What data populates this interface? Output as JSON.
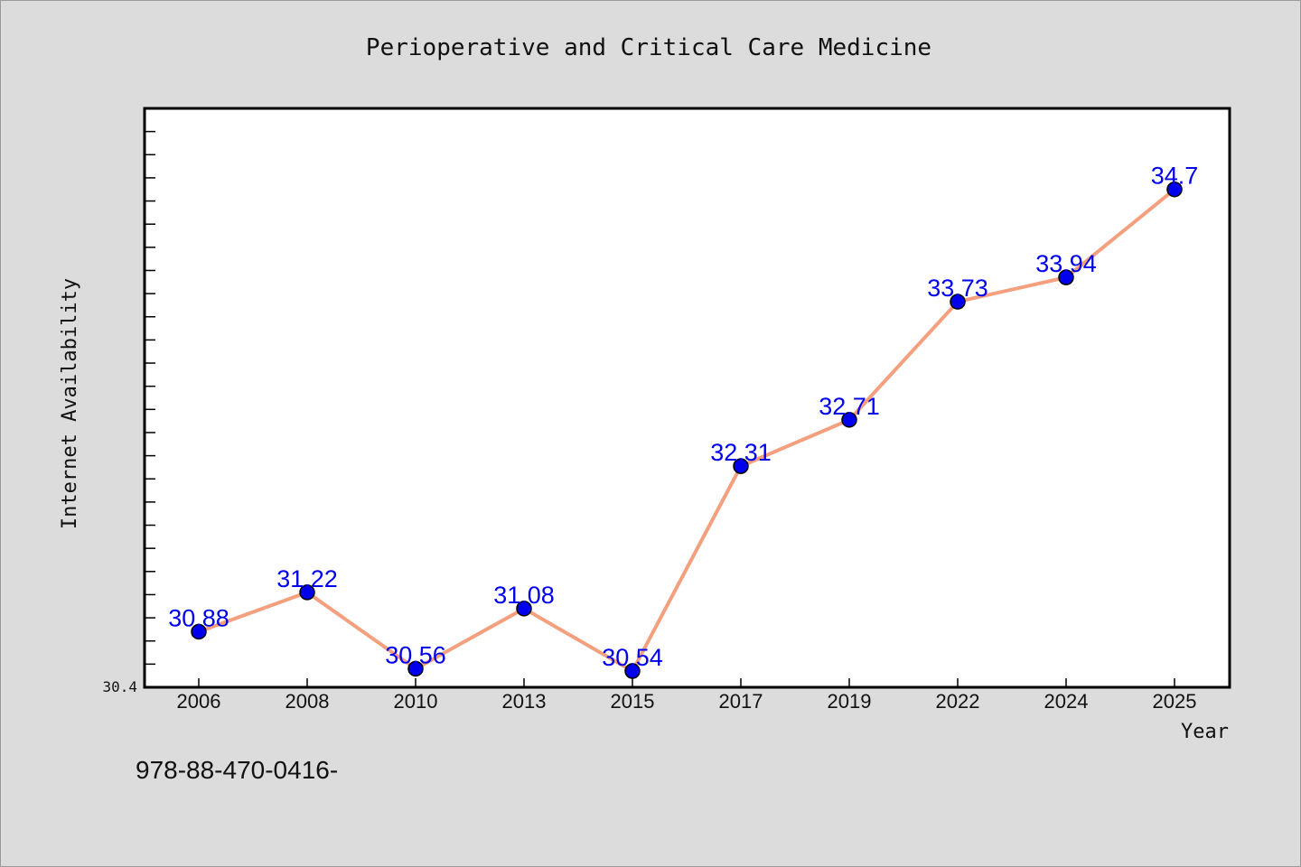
{
  "chart_data": {
    "type": "line",
    "title": "Perioperative and Critical Care Medicine",
    "xlabel": "Year",
    "ylabel": "Internet Availability",
    "categories": [
      "2006",
      "2008",
      "2010",
      "2013",
      "2015",
      "2017",
      "2019",
      "2022",
      "2024",
      "2025"
    ],
    "series": [
      {
        "values": [
          30.88,
          31.22,
          30.56,
          31.08,
          30.54,
          32.31,
          32.71,
          33.73,
          33.94,
          34.7
        ],
        "labels": [
          "30.88",
          "31.22",
          "30.56",
          "31.08",
          "30.54",
          "32.31",
          "32.71",
          "33.73",
          "33.94",
          "34.7"
        ]
      }
    ],
    "ylim": [
      30.4,
      35.4
    ],
    "ytick_label": "30.4",
    "grid": false,
    "line_color": "#f4a07e",
    "marker_color": "#0000ee",
    "label_color": "#0000ee"
  },
  "footer_text": "978-88-470-0416-"
}
